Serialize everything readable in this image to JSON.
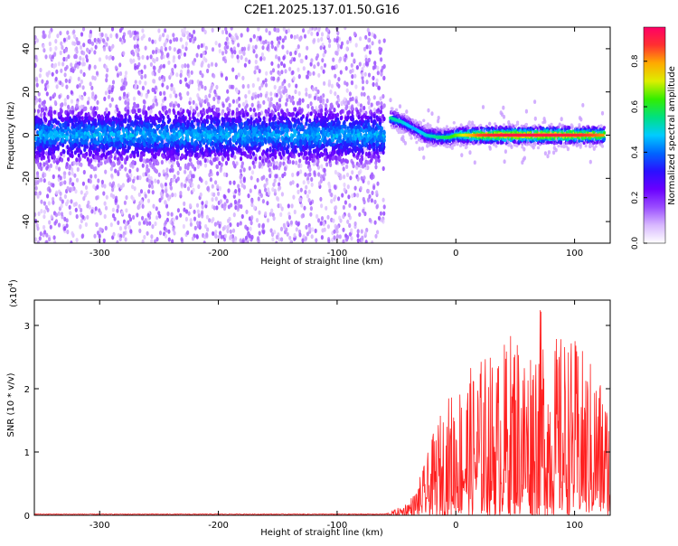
{
  "chart_data": [
    {
      "type": "heatmap",
      "title": "C2E1.2025.137.01.50.G16",
      "xlabel": "Height of straight line (km)",
      "ylabel": "Frequency (Hz)",
      "xlim": [
        -355,
        130
      ],
      "ylim": [
        -50,
        50
      ],
      "xticks": [
        -300,
        -200,
        -100,
        0,
        100
      ],
      "yticks": [
        -40,
        -20,
        0,
        20,
        40
      ],
      "colorbar": {
        "label": "Normalized spectral amplitude",
        "range": [
          0.0,
          0.95
        ],
        "ticks": [
          0.0,
          0.2,
          0.4,
          0.6,
          0.8
        ],
        "colors": [
          "#ffffff",
          "#d8b8ff",
          "#9a4dff",
          "#6a00ff",
          "#2a10ff",
          "#0066ff",
          "#00ccff",
          "#00e080",
          "#33ee00",
          "#ddee00",
          "#ffaa00",
          "#ff3030",
          "#ff0066"
        ]
      },
      "features": {
        "noise_region_x": [
          -355,
          -60
        ],
        "noise_band_center_hz": 0,
        "noise_band_halfwidth_hz": 8,
        "signal_track": {
          "x": [
            -55,
            -45,
            -35,
            -25,
            -15,
            -5,
            0,
            10,
            20,
            40,
            60,
            80,
            100,
            115,
            125
          ],
          "freq_hz": [
            8,
            6,
            3,
            0,
            -1,
            -1,
            0,
            0,
            0,
            0,
            0,
            0,
            0,
            0,
            0
          ],
          "peak_amplitude": [
            0.55,
            0.5,
            0.45,
            0.5,
            0.55,
            0.6,
            0.65,
            0.75,
            0.85,
            0.9,
            0.9,
            0.9,
            0.88,
            0.85,
            0.8
          ]
        }
      }
    },
    {
      "type": "line",
      "title": "",
      "xlabel": "Height of straight line (km)",
      "ylabel": "SNR (10 * v/v)",
      "yscale_label": "(x10",
      "yscale_exp": "4",
      "xlim": [
        -355,
        130
      ],
      "ylim": [
        0,
        3.4
      ],
      "xticks": [
        -300,
        -200,
        -100,
        0,
        100
      ],
      "yticks": [
        0,
        1,
        2,
        3
      ],
      "series": [
        {
          "color": "#ff2020",
          "envelope": {
            "x": [
              -355,
              -60,
              -45,
              -35,
              -25,
              -15,
              -5,
              5,
              15,
              25,
              35,
              50,
              60,
              70,
              80,
              90,
              100,
              110,
              120,
              130
            ],
            "max": [
              0.02,
              0.02,
              0.15,
              0.35,
              0.9,
              1.55,
              1.95,
              2.2,
              2.4,
              2.6,
              2.55,
              3.1,
              2.7,
              3.35,
              2.8,
              2.9,
              2.8,
              2.55,
              2.35,
              1.75
            ]
          }
        }
      ]
    }
  ]
}
